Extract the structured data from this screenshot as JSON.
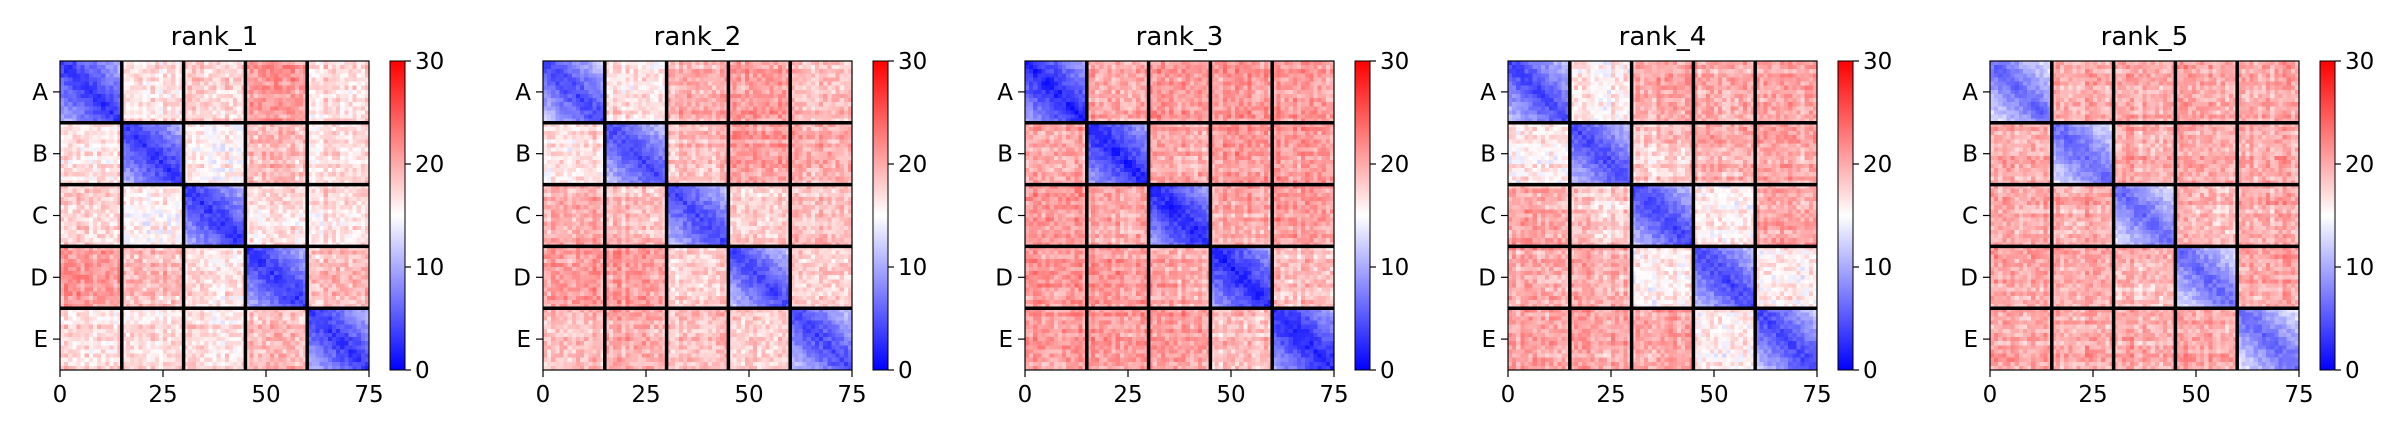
{
  "colorbar": {
    "ticks": [
      0,
      10,
      20,
      30
    ],
    "vmin": 0,
    "vmax": 30,
    "cmap": "bwr",
    "colors": [
      "#0000ff",
      "#ffffff",
      "#ff0000"
    ]
  },
  "block_labels": [
    "A",
    "B",
    "C",
    "D",
    "E"
  ],
  "x_ticks": [
    0,
    25,
    50,
    75
  ],
  "chart_data": [
    {
      "type": "heatmap",
      "title": "rank_1",
      "xlim": [
        0,
        75
      ],
      "n": 75,
      "block_size": 15,
      "blocks": [
        "A",
        "B",
        "C",
        "D",
        "E"
      ],
      "colorbar_range": [
        0,
        30
      ],
      "diagonal_block_mean": 5,
      "off_diagonal_block_mean": [
        [
          5,
          17,
          18,
          21,
          17
        ],
        [
          17,
          5,
          16,
          19,
          17
        ],
        [
          18,
          16,
          5,
          17,
          17
        ],
        [
          21,
          19,
          17,
          5,
          19
        ],
        [
          17,
          17,
          17,
          19,
          5
        ]
      ]
    },
    {
      "type": "heatmap",
      "title": "rank_2",
      "xlim": [
        0,
        75
      ],
      "n": 75,
      "block_size": 15,
      "blocks": [
        "A",
        "B",
        "C",
        "D",
        "E"
      ],
      "colorbar_range": [
        0,
        30
      ],
      "diagonal_block_mean": 6,
      "off_diagonal_block_mean": [
        [
          6,
          17,
          20,
          21,
          19
        ],
        [
          17,
          6,
          19,
          21,
          20
        ],
        [
          20,
          19,
          6,
          18,
          19
        ],
        [
          21,
          21,
          18,
          6,
          18
        ],
        [
          19,
          20,
          19,
          18,
          6
        ]
      ]
    },
    {
      "type": "heatmap",
      "title": "rank_3",
      "xlim": [
        0,
        75
      ],
      "n": 75,
      "block_size": 15,
      "blocks": [
        "A",
        "B",
        "C",
        "D",
        "E"
      ],
      "colorbar_range": [
        0,
        30
      ],
      "diagonal_block_mean": 4,
      "off_diagonal_block_mean": [
        [
          4,
          20,
          21,
          21,
          21
        ],
        [
          20,
          4,
          20,
          21,
          21
        ],
        [
          21,
          20,
          4,
          20,
          21
        ],
        [
          21,
          21,
          20,
          4,
          19
        ],
        [
          21,
          21,
          21,
          19,
          4
        ]
      ]
    },
    {
      "type": "heatmap",
      "title": "rank_4",
      "xlim": [
        0,
        75
      ],
      "n": 75,
      "block_size": 15,
      "blocks": [
        "A",
        "B",
        "C",
        "D",
        "E"
      ],
      "colorbar_range": [
        0,
        30
      ],
      "diagonal_block_mean": 6,
      "off_diagonal_block_mean": [
        [
          6,
          16,
          20,
          20,
          20
        ],
        [
          16,
          6,
          18,
          20,
          20
        ],
        [
          20,
          18,
          6,
          16,
          20
        ],
        [
          20,
          20,
          16,
          6,
          16
        ],
        [
          20,
          20,
          20,
          16,
          6
        ]
      ]
    },
    {
      "type": "heatmap",
      "title": "rank_5",
      "xlim": [
        0,
        75
      ],
      "n": 75,
      "block_size": 15,
      "blocks": [
        "A",
        "B",
        "C",
        "D",
        "E"
      ],
      "colorbar_range": [
        0,
        30
      ],
      "diagonal_block_mean": 8,
      "off_diagonal_block_mean": [
        [
          8,
          20,
          20,
          20,
          20
        ],
        [
          20,
          8,
          20,
          20,
          20
        ],
        [
          20,
          20,
          8,
          19,
          20
        ],
        [
          20,
          20,
          19,
          8,
          20
        ],
        [
          20,
          20,
          20,
          20,
          8
        ]
      ]
    }
  ]
}
